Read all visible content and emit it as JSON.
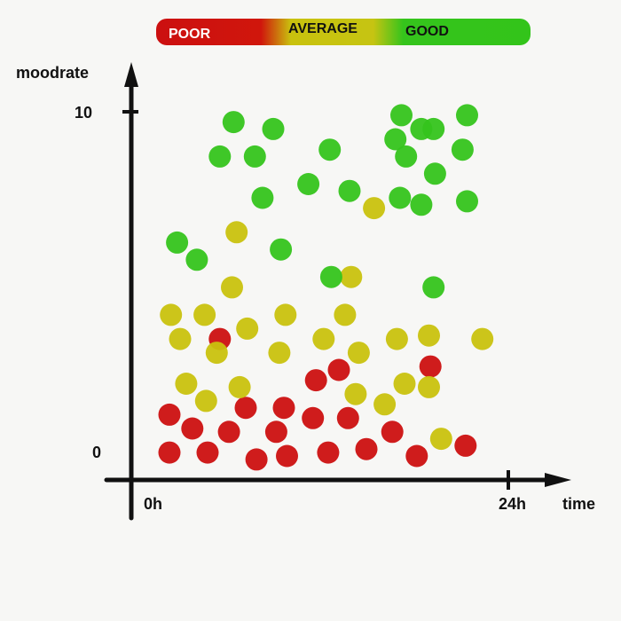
{
  "chart_data": {
    "type": "scatter",
    "xlabel": "time",
    "ylabel": "moodrate",
    "x_ticks": [
      "0h",
      "24h"
    ],
    "y_ticks": [
      "0",
      "10"
    ],
    "xlim": [
      0,
      24
    ],
    "ylim": [
      0,
      10
    ],
    "legend": [
      {
        "name": "POOR",
        "color": "#cc1010"
      },
      {
        "name": "AVERAGE",
        "color": "#c9c20e"
      },
      {
        "name": "GOOD",
        "color": "#35c41c"
      }
    ],
    "series": [
      {
        "name": "POOR",
        "color": "#cc1010",
        "points": [
          [
            1.8,
            0.1
          ],
          [
            4.3,
            0.1
          ],
          [
            7.5,
            -0.1
          ],
          [
            9.5,
            0.0
          ],
          [
            12.2,
            0.1
          ],
          [
            14.7,
            0.2
          ],
          [
            18.0,
            0.0
          ],
          [
            21.2,
            0.3
          ],
          [
            1.8,
            1.2
          ],
          [
            3.3,
            0.8
          ],
          [
            5.7,
            0.7
          ],
          [
            6.8,
            1.4
          ],
          [
            8.8,
            0.7
          ],
          [
            9.3,
            1.4
          ],
          [
            11.2,
            1.1
          ],
          [
            13.5,
            1.1
          ],
          [
            16.4,
            0.7
          ],
          [
            11.4,
            2.2
          ],
          [
            12.9,
            2.5
          ],
          [
            18.9,
            2.6
          ],
          [
            5.1,
            3.4
          ]
        ]
      },
      {
        "name": "AVERAGE",
        "color": "#c9c20e",
        "points": [
          [
            1.9,
            4.1
          ],
          [
            4.1,
            4.1
          ],
          [
            9.4,
            4.1
          ],
          [
            13.3,
            4.1
          ],
          [
            6.9,
            3.7
          ],
          [
            2.5,
            3.4
          ],
          [
            11.9,
            3.4
          ],
          [
            16.7,
            3.4
          ],
          [
            18.8,
            3.5
          ],
          [
            22.3,
            3.4
          ],
          [
            4.9,
            3.0
          ],
          [
            9.0,
            3.0
          ],
          [
            14.2,
            3.0
          ],
          [
            2.9,
            2.1
          ],
          [
            6.4,
            2.0
          ],
          [
            17.2,
            2.1
          ],
          [
            18.8,
            2.0
          ],
          [
            4.2,
            1.6
          ],
          [
            14.0,
            1.8
          ],
          [
            15.9,
            1.5
          ],
          [
            19.6,
            0.5
          ],
          [
            6.2,
            6.5
          ],
          [
            5.9,
            4.9
          ],
          [
            15.2,
            7.2
          ],
          [
            13.7,
            5.2
          ]
        ]
      },
      {
        "name": "GOOD",
        "color": "#35c41c",
        "points": [
          [
            6.0,
            9.7
          ],
          [
            8.6,
            9.5
          ],
          [
            17.0,
            9.9
          ],
          [
            21.3,
            9.9
          ],
          [
            18.3,
            9.5
          ],
          [
            19.1,
            9.5
          ],
          [
            16.6,
            9.2
          ],
          [
            21.0,
            8.9
          ],
          [
            5.1,
            8.7
          ],
          [
            7.4,
            8.7
          ],
          [
            12.3,
            8.9
          ],
          [
            17.3,
            8.7
          ],
          [
            19.2,
            8.2
          ],
          [
            10.9,
            7.9
          ],
          [
            13.6,
            7.7
          ],
          [
            7.9,
            7.5
          ],
          [
            16.9,
            7.5
          ],
          [
            18.3,
            7.3
          ],
          [
            21.3,
            7.4
          ],
          [
            2.3,
            6.2
          ],
          [
            3.6,
            5.7
          ],
          [
            9.1,
            6.0
          ],
          [
            12.4,
            5.2
          ],
          [
            19.1,
            4.9
          ]
        ]
      }
    ]
  }
}
